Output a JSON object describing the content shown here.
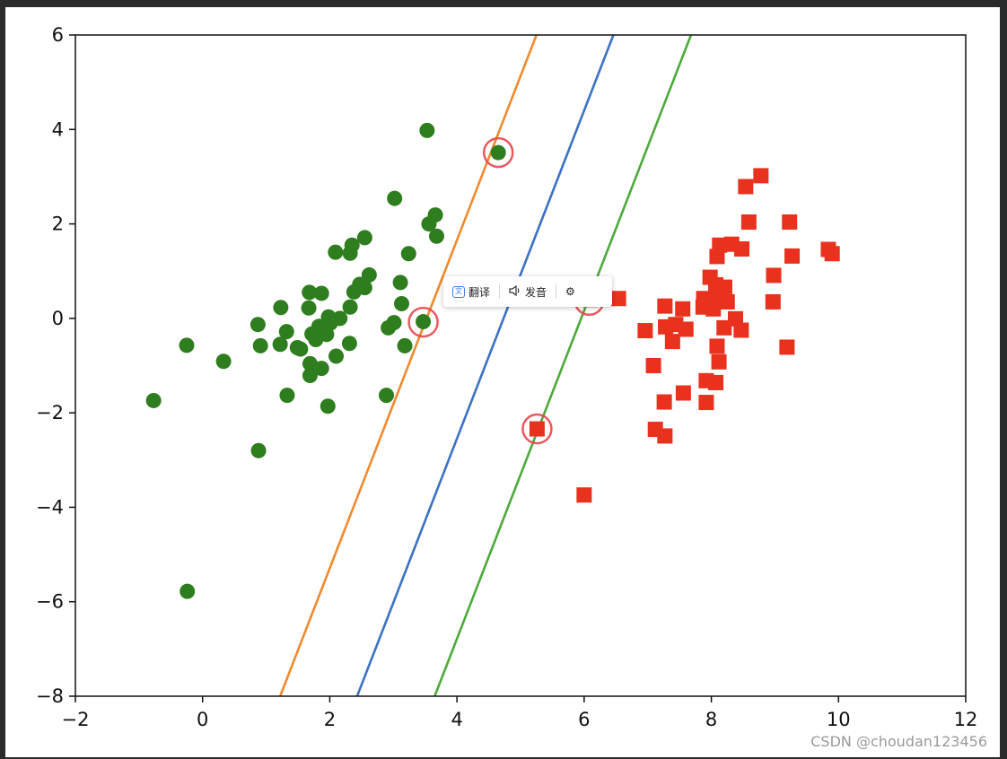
{
  "chart_data": {
    "type": "scatter",
    "title": "",
    "xlabel": "",
    "ylabel": "",
    "xlim": [
      -2,
      12
    ],
    "ylim": [
      -8,
      6
    ],
    "grid": false,
    "xticks": [
      -2,
      0,
      2,
      4,
      6,
      8,
      10,
      12
    ],
    "yticks": [
      -8,
      -6,
      -4,
      -2,
      0,
      2,
      4,
      6
    ],
    "xtick_labels": [
      "−2",
      "0",
      "2",
      "4",
      "6",
      "8",
      "10",
      "12"
    ],
    "ytick_labels": [
      "−8",
      "−6",
      "−4",
      "−2",
      "0",
      "2",
      "4",
      "6"
    ],
    "series": [
      {
        "marker": "circle",
        "color": "#2e7d1e",
        "points": [
          [
            3.53,
            3.98
          ],
          [
            4.65,
            3.51
          ],
          [
            3.02,
            2.54
          ],
          [
            3.66,
            2.19
          ],
          [
            3.56,
            2.0
          ],
          [
            3.68,
            1.74
          ],
          [
            2.09,
            1.4
          ],
          [
            2.35,
            1.55
          ],
          [
            2.55,
            1.71
          ],
          [
            2.32,
            1.38
          ],
          [
            3.24,
            1.37
          ],
          [
            2.62,
            0.92
          ],
          [
            2.47,
            0.72
          ],
          [
            2.55,
            0.65
          ],
          [
            2.38,
            0.56
          ],
          [
            3.11,
            0.76
          ],
          [
            3.13,
            0.31
          ],
          [
            1.68,
            0.55
          ],
          [
            1.87,
            0.53
          ],
          [
            1.23,
            0.23
          ],
          [
            1.67,
            0.22
          ],
          [
            2.32,
            0.24
          ],
          [
            2.16,
            0.0
          ],
          [
            1.98,
            0.03
          ],
          [
            2.01,
            -0.1
          ],
          [
            1.83,
            -0.17
          ],
          [
            1.89,
            -0.2
          ],
          [
            1.72,
            -0.33
          ],
          [
            3.01,
            -0.09
          ],
          [
            2.92,
            -0.2
          ],
          [
            3.47,
            -0.07
          ],
          [
            0.87,
            -0.13
          ],
          [
            1.32,
            -0.28
          ],
          [
            1.95,
            -0.34
          ],
          [
            1.78,
            -0.45
          ],
          [
            2.31,
            -0.53
          ],
          [
            1.22,
            -0.55
          ],
          [
            1.49,
            -0.62
          ],
          [
            0.91,
            -0.58
          ],
          [
            3.18,
            -0.58
          ],
          [
            1.54,
            -0.65
          ],
          [
            2.1,
            -0.8
          ],
          [
            1.69,
            -0.96
          ],
          [
            1.87,
            -1.06
          ],
          [
            1.69,
            -1.21
          ],
          [
            -0.25,
            -0.57
          ],
          [
            0.33,
            -0.91
          ],
          [
            1.33,
            -1.63
          ],
          [
            2.89,
            -1.63
          ],
          [
            1.97,
            -1.86
          ],
          [
            -0.77,
            -1.74
          ],
          [
            0.88,
            -2.8
          ],
          [
            -0.24,
            -5.78
          ]
        ]
      },
      {
        "marker": "square",
        "color": "#e8321e",
        "points": [
          [
            8.78,
            3.02
          ],
          [
            8.54,
            2.79
          ],
          [
            8.59,
            2.04
          ],
          [
            9.23,
            2.04
          ],
          [
            8.13,
            1.55
          ],
          [
            8.32,
            1.57
          ],
          [
            8.48,
            1.47
          ],
          [
            8.09,
            1.31
          ],
          [
            9.84,
            1.46
          ],
          [
            9.9,
            1.37
          ],
          [
            9.27,
            1.32
          ],
          [
            8.98,
            0.91
          ],
          [
            7.98,
            0.87
          ],
          [
            8.07,
            0.71
          ],
          [
            8.18,
            0.57
          ],
          [
            8.21,
            0.66
          ],
          [
            6.54,
            0.42
          ],
          [
            6.09,
            0.4
          ],
          [
            7.88,
            0.42
          ],
          [
            8.1,
            0.39
          ],
          [
            8.25,
            0.35
          ],
          [
            8.97,
            0.35
          ],
          [
            7.27,
            0.26
          ],
          [
            7.87,
            0.24
          ],
          [
            8.03,
            0.2
          ],
          [
            7.55,
            0.2
          ],
          [
            7.44,
            -0.13
          ],
          [
            7.28,
            -0.18
          ],
          [
            8.38,
            -0.01
          ],
          [
            8.2,
            -0.2
          ],
          [
            8.47,
            -0.25
          ],
          [
            7.6,
            -0.23
          ],
          [
            6.96,
            -0.26
          ],
          [
            7.39,
            -0.49
          ],
          [
            8.09,
            -0.59
          ],
          [
            9.19,
            -0.61
          ],
          [
            8.12,
            -0.92
          ],
          [
            7.09,
            -1.0
          ],
          [
            7.92,
            -1.32
          ],
          [
            8.07,
            -1.36
          ],
          [
            7.56,
            -1.58
          ],
          [
            7.26,
            -1.77
          ],
          [
            7.92,
            -1.78
          ],
          [
            5.26,
            -2.34
          ],
          [
            7.12,
            -2.35
          ],
          [
            7.27,
            -2.49
          ],
          [
            6.0,
            -3.74
          ]
        ]
      }
    ],
    "lines": [
      {
        "color": "#f08a2e",
        "x": [
          1.22,
          5.25
        ],
        "y": [
          -8,
          6
        ]
      },
      {
        "color": "#3b72c3",
        "x": [
          2.43,
          6.46
        ],
        "y": [
          -8,
          6
        ]
      },
      {
        "color": "#4caa3a",
        "x": [
          3.65,
          7.68
        ],
        "y": [
          -8,
          6
        ]
      }
    ],
    "highlight_circles": {
      "color": "#e8474c",
      "points": [
        [
          4.65,
          3.51
        ],
        [
          3.47,
          -0.08
        ],
        [
          6.08,
          0.38
        ],
        [
          5.26,
          -2.34
        ]
      ]
    }
  },
  "popup": {
    "translate_label": "翻译",
    "speak_label": "发音",
    "settings_icon": "gear-icon"
  },
  "watermark": "CSDN @choudan123456"
}
